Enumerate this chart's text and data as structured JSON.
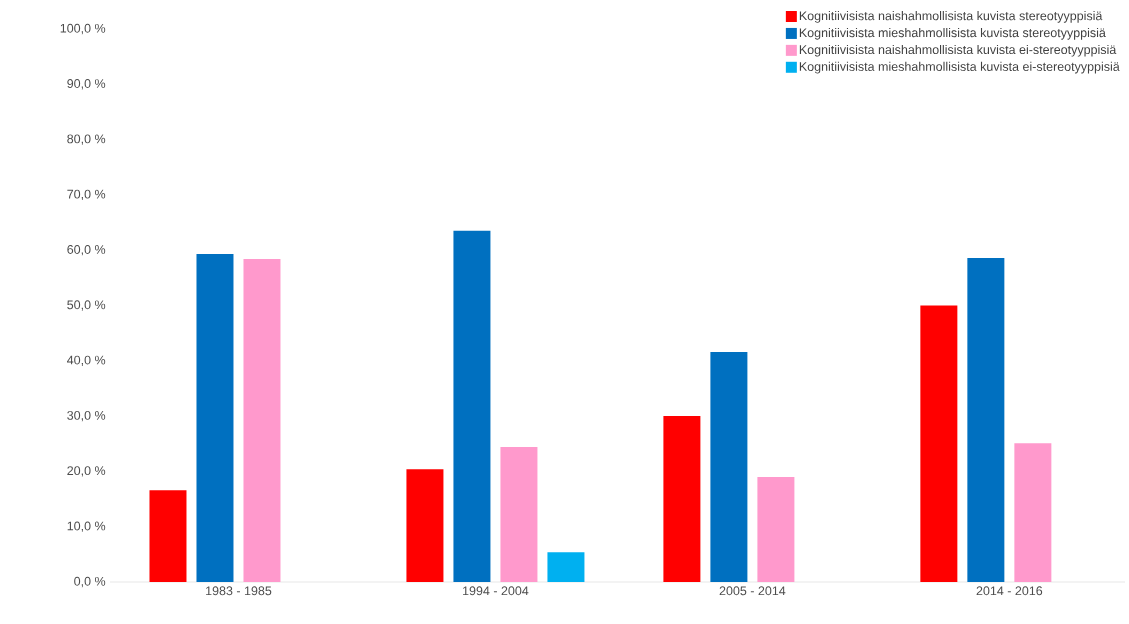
{
  "chart_data": {
    "type": "bar",
    "categories": [
      "1983 - 1985",
      "1994 - 2004",
      "2005 - 2014",
      "2014 - 2016"
    ],
    "series": [
      {
        "name": "Kognitiivisista naishahmollisista kuvista stereotyyppisiä",
        "color": "#ff0000",
        "values": [
          16.6,
          20.4,
          30.0,
          50.0
        ]
      },
      {
        "name": "Kognitiivisista mieshahmollisista kuvista stereotyyppisiä",
        "color": "#0070c0",
        "values": [
          59.3,
          63.5,
          41.6,
          58.6
        ]
      },
      {
        "name": "Kognitiivisista naishahmollisista kuvista ei-stereotyyppisiä",
        "color": "#ff99cc",
        "values": [
          58.4,
          24.4,
          19.0,
          25.1
        ]
      },
      {
        "name": "Kognitiivisista mieshahmollisista kuvista ei-stereotyyppisiä",
        "color": "#00b0f0",
        "values": [
          0,
          5.4,
          0,
          0
        ]
      }
    ],
    "ylim": [
      0,
      100
    ],
    "yticks": [
      {
        "value": 0,
        "label": "0,0 %"
      },
      {
        "value": 10,
        "label": "10,0 %"
      },
      {
        "value": 20,
        "label": "20,0 %"
      },
      {
        "value": 30,
        "label": "30,0 %"
      },
      {
        "value": 40,
        "label": "40,0 %"
      },
      {
        "value": 50,
        "label": "50,0 %"
      },
      {
        "value": 60,
        "label": "60,0 %"
      },
      {
        "value": 70,
        "label": "70,0 %"
      },
      {
        "value": 80,
        "label": "80,0 %"
      },
      {
        "value": 90,
        "label": "90,0 %"
      },
      {
        "value": 100,
        "label": "100,0 %"
      }
    ],
    "grid": false,
    "legend": "top right"
  }
}
